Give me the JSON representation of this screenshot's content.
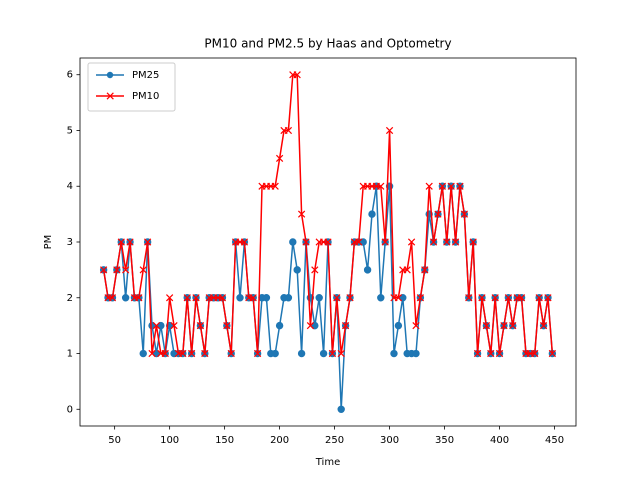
{
  "chart_data": {
    "type": "line",
    "title": "PM10 and PM2.5 by Haas and Optometry",
    "x_label": "Time",
    "y_label": "PM",
    "x": [
      40,
      44,
      48,
      52,
      56,
      60,
      64,
      68,
      72,
      76,
      80,
      84,
      88,
      92,
      96,
      100,
      104,
      108,
      112,
      116,
      120,
      124,
      128,
      132,
      136,
      140,
      144,
      148,
      152,
      156,
      160,
      164,
      168,
      172,
      176,
      180,
      184,
      188,
      192,
      196,
      200,
      204,
      208,
      212,
      216,
      220,
      224,
      228,
      232,
      236,
      240,
      244,
      248,
      252,
      256,
      260,
      264,
      268,
      272,
      276,
      280,
      284,
      288,
      292,
      296,
      300,
      304,
      308,
      312,
      316,
      320,
      324,
      328,
      332,
      336,
      340,
      344,
      348,
      352,
      356,
      360,
      364,
      368,
      372,
      376,
      380,
      384,
      388,
      392,
      396,
      400,
      404,
      408,
      412,
      416,
      420,
      424,
      428,
      432,
      436,
      440,
      444,
      448
    ],
    "series": [
      {
        "name": "PM25",
        "color": "#1f77b4",
        "marker": "o",
        "values": [
          2.5,
          2,
          2,
          2.5,
          3,
          2,
          3,
          2,
          2,
          1,
          3,
          1.5,
          1,
          1.5,
          1,
          1.5,
          1,
          1,
          1,
          2,
          1,
          2,
          1.5,
          1,
          2,
          2,
          2,
          2,
          1.5,
          1,
          3,
          2,
          3,
          2,
          2,
          1,
          2,
          2,
          1,
          1,
          1.5,
          2,
          2,
          3,
          2.5,
          1,
          3,
          2,
          1.5,
          2,
          1,
          3,
          1,
          2,
          0,
          1.5,
          2,
          3,
          3,
          3,
          2.5,
          3.5,
          4,
          2,
          3,
          4,
          1,
          1.5,
          2,
          1,
          1,
          1,
          2,
          2.5,
          3.5,
          3,
          3.5,
          4,
          3,
          4,
          3,
          4,
          3.5,
          2,
          3,
          1,
          2,
          1.5,
          1,
          2,
          1,
          1.5,
          2,
          1.5,
          2,
          2,
          1,
          1,
          1,
          2,
          1.5,
          2,
          1
        ]
      },
      {
        "name": "PM10",
        "color": "#ff0000",
        "marker": "x",
        "values": [
          2.5,
          2,
          2,
          2.5,
          3,
          2.5,
          3,
          2,
          2,
          2.5,
          3,
          1,
          1.5,
          1,
          1,
          2,
          1.5,
          1,
          1,
          2,
          1,
          2,
          1.5,
          1,
          2,
          2,
          2,
          2,
          1.5,
          1,
          3,
          3,
          3,
          2,
          2,
          1,
          4,
          4,
          4,
          4,
          4.5,
          5,
          5,
          6,
          6,
          3.5,
          3,
          1.5,
          2.5,
          3,
          3,
          3,
          1,
          2,
          1,
          1.5,
          2,
          3,
          3,
          4,
          4,
          4,
          4,
          4,
          3,
          5,
          2,
          2,
          2.5,
          2.5,
          3,
          1.5,
          2,
          2.5,
          4,
          3,
          3.5,
          4,
          3,
          4,
          3,
          4,
          3.5,
          2,
          3,
          1,
          2,
          1.5,
          1,
          2,
          1,
          1.5,
          2,
          1.5,
          2,
          2,
          1,
          1,
          1,
          2,
          1.5,
          2,
          1
        ]
      }
    ],
    "xlim": [
      18.5,
      469.5
    ],
    "ylim": [
      -0.3,
      6.3
    ],
    "xticks": [
      50,
      100,
      150,
      200,
      250,
      300,
      350,
      400,
      450
    ],
    "yticks": [
      0,
      1,
      2,
      3,
      4,
      5,
      6
    ],
    "legend": "upper left",
    "grid": false
  }
}
